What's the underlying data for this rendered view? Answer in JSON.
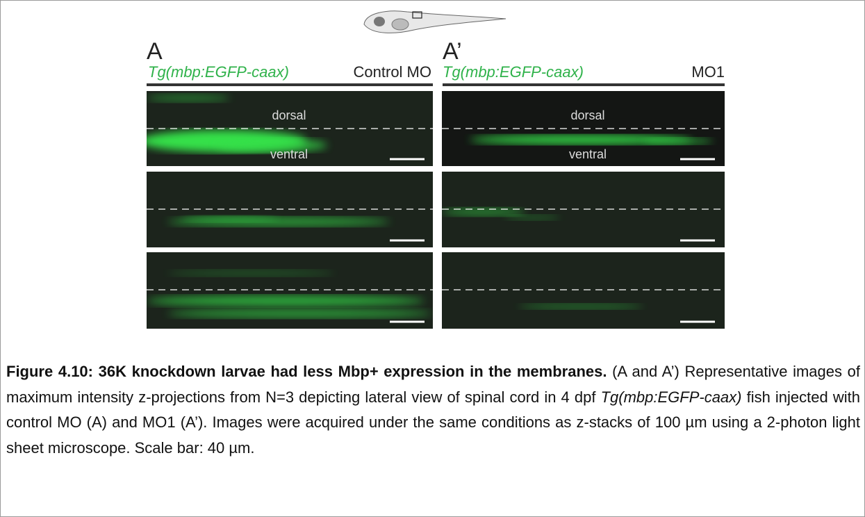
{
  "figure": {
    "panels": [
      {
        "label": "A",
        "transgene": "Tg(mbp:EGFP-caax)",
        "condition": "Control MO",
        "dorsal_label": "dorsal",
        "ventral_label": "ventral"
      },
      {
        "label": "A’",
        "transgene": "Tg(mbp:EGFP-caax)",
        "condition": "MO1",
        "dorsal_label": "dorsal",
        "ventral_label": "ventral"
      }
    ],
    "caption": {
      "title": "Figure 4.10: 36K knockdown larvae had less Mbp+ expression in the membranes.",
      "text_1": "(A and A’) Representative images of maximum intensity z-projections from N=3 depicting lateral view of spinal cord in 4 dpf",
      "transgene": "Tg(mbp:EGFP-caax)",
      "text_2": "fish injected with control MO (A) and MO1 (A’). Images were acquired under the same conditions as z-stacks of 100 µm using a 2-photon light sheet microscope. Scale bar: 40 µm."
    }
  }
}
